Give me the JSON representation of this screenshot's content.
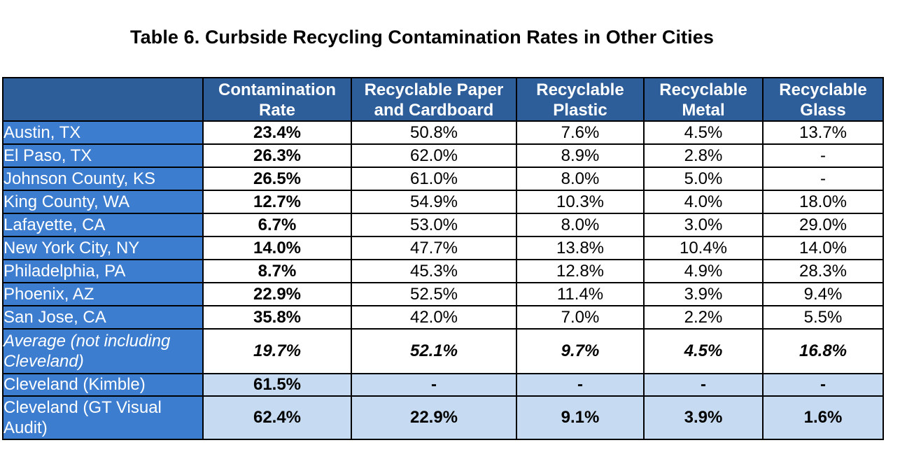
{
  "caption": "Table 6. Curbside Recycling Contamination Rates in Other Cities",
  "headers": {
    "rate": [
      "Contamination",
      "Rate"
    ],
    "paper": [
      "Recyclable Paper",
      "and Cardboard"
    ],
    "plastic": [
      "Recyclable",
      "Plastic"
    ],
    "metal": [
      "Recyclable",
      "Metal"
    ],
    "glass": [
      "Recyclable",
      "Glass"
    ]
  },
  "rows": [
    {
      "city": "Austin, TX",
      "rate": "23.4%",
      "paper": "50.8%",
      "plastic": "7.6%",
      "metal": "4.5%",
      "glass": "13.7%"
    },
    {
      "city": "El Paso, TX",
      "rate": "26.3%",
      "paper": "62.0%",
      "plastic": "8.9%",
      "metal": "2.8%",
      "glass": "-"
    },
    {
      "city": "Johnson County, KS",
      "rate": "26.5%",
      "paper": "61.0%",
      "plastic": "8.0%",
      "metal": "5.0%",
      "glass": "-"
    },
    {
      "city": "King County, WA",
      "rate": "12.7%",
      "paper": "54.9%",
      "plastic": "10.3%",
      "metal": "4.0%",
      "glass": "18.0%"
    },
    {
      "city": "Lafayette, CA",
      "rate": "6.7%",
      "paper": "53.0%",
      "plastic": "8.0%",
      "metal": "3.0%",
      "glass": "29.0%"
    },
    {
      "city": "New York City, NY",
      "rate": "14.0%",
      "paper": "47.7%",
      "plastic": "13.8%",
      "metal": "10.4%",
      "glass": "14.0%"
    },
    {
      "city": "Philadelphia, PA",
      "rate": "8.7%",
      "paper": "45.3%",
      "plastic": "12.8%",
      "metal": "4.9%",
      "glass": "28.3%"
    },
    {
      "city": "Phoenix, AZ",
      "rate": "22.9%",
      "paper": "52.5%",
      "plastic": "11.4%",
      "metal": "3.9%",
      "glass": "9.4%"
    },
    {
      "city": "San Jose, CA",
      "rate": "35.8%",
      "paper": "42.0%",
      "plastic": "7.0%",
      "metal": "2.2%",
      "glass": "5.5%"
    }
  ],
  "average": {
    "city": "Average (not including Cleveland)",
    "rate": "19.7%",
    "paper": "52.1%",
    "plastic": "9.7%",
    "metal": "4.5%",
    "glass": "16.8%"
  },
  "cleveland_kimble": {
    "city": "Cleveland (Kimble)",
    "rate": "61.5%",
    "paper": "-",
    "plastic": "-",
    "metal": "-",
    "glass": "-"
  },
  "cleveland_gt": {
    "city": "Cleveland (GT Visual Audit)",
    "rate": "62.4%",
    "paper": "22.9%",
    "plastic": "9.1%",
    "metal": "3.9%",
    "glass": "1.6%"
  }
}
